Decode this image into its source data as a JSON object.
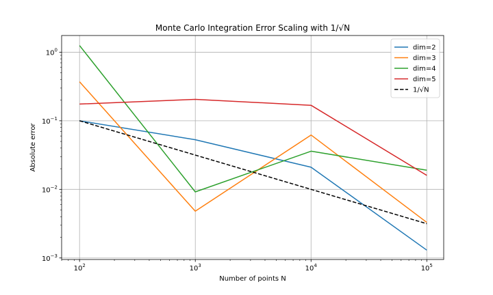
{
  "chart_data": {
    "type": "line",
    "title": "Monte Carlo Integration Error Scaling with 1/√N",
    "xlabel": "Number of points N",
    "ylabel": "Absolute error",
    "xscale": "log",
    "yscale": "log",
    "xlim": [
      70,
      140000
    ],
    "ylim": [
      0.00095,
      1.75
    ],
    "grid": true,
    "legend_position": "top-right",
    "x": [
      100,
      1000,
      10000,
      100000
    ],
    "x_tick_labels": [
      {
        "base": "10",
        "exp": "2"
      },
      {
        "base": "10",
        "exp": "3"
      },
      {
        "base": "10",
        "exp": "4"
      },
      {
        "base": "10",
        "exp": "5"
      }
    ],
    "y_ticks": [
      0.001,
      0.01,
      0.1,
      1
    ],
    "y_tick_labels": [
      {
        "base": "10",
        "exp": "−3"
      },
      {
        "base": "10",
        "exp": "−2"
      },
      {
        "base": "10",
        "exp": "−1"
      },
      {
        "base": "10",
        "exp": "0"
      }
    ],
    "series": [
      {
        "name": "dim=2",
        "color": "#1f77b4",
        "style": "solid",
        "values": [
          0.1,
          0.053,
          0.021,
          0.0013
        ]
      },
      {
        "name": "dim=3",
        "color": "#ff7f0e",
        "style": "solid",
        "values": [
          0.37,
          0.0048,
          0.062,
          0.0033
        ]
      },
      {
        "name": "dim=4",
        "color": "#2ca02c",
        "style": "solid",
        "values": [
          1.25,
          0.0092,
          0.036,
          0.019
        ]
      },
      {
        "name": "dim=5",
        "color": "#d62728",
        "style": "solid",
        "values": [
          0.175,
          0.205,
          0.168,
          0.016
        ]
      },
      {
        "name": "1/√N",
        "color": "#000000",
        "style": "dashed",
        "values": [
          0.1,
          0.0316,
          0.01,
          0.00316
        ]
      }
    ]
  }
}
